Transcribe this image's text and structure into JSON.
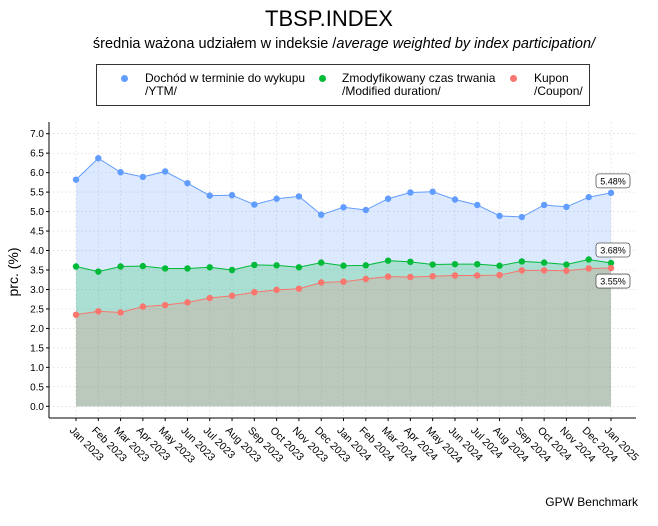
{
  "title": "TBSP.INDEX",
  "subtitle_normal": "średnia ważona udziałem w indeksie /",
  "subtitle_italic": "average weighted by index participation/",
  "source": "GPW Benchmark",
  "legend": [
    {
      "line1": "Dochód w terminie do wykupu",
      "line2": "/YTM/"
    },
    {
      "line1": "Zmodyfikowany czas trwania",
      "line2": "/Modified duration/"
    },
    {
      "line1": "Kupon",
      "line2": "/Coupon/"
    }
  ],
  "colors": {
    "ytm": "#619CFF",
    "duration": "#00BA38",
    "coupon": "#F8766D"
  },
  "chart_data": {
    "type": "area",
    "title": "TBSP.INDEX",
    "ylabel": "prc. (%)",
    "xlabel": "",
    "ylim": [
      -0.3,
      7.3
    ],
    "yticks": [
      "0.0",
      "0.5",
      "1.0",
      "1.5",
      "2.0",
      "2.5",
      "3.0",
      "3.5",
      "4.0",
      "4.5",
      "5.0",
      "5.5",
      "6.0",
      "6.5",
      "7.0"
    ],
    "grid": true,
    "legend_position": "top",
    "categories": [
      "Jan 2023",
      "Feb 2023",
      "Mar 2023",
      "Apr 2023",
      "May 2023",
      "Jun 2023",
      "Jul 2023",
      "Aug 2023",
      "Sep 2023",
      "Oct 2023",
      "Nov 2023",
      "Dec 2023",
      "Jan 2024",
      "Feb 2024",
      "Mar 2024",
      "Apr 2024",
      "May 2024",
      "Jun 2024",
      "Jul 2024",
      "Aug 2024",
      "Sep 2024",
      "Oct 2024",
      "Nov 2024",
      "Dec 2024",
      "Jan 2025"
    ],
    "series": [
      {
        "name": "Dochód w terminie do wykupu /YTM/",
        "key": "ytm",
        "end_label": "5.48%",
        "values": [
          5.82,
          6.37,
          6.01,
          5.89,
          6.03,
          5.73,
          5.41,
          5.42,
          5.18,
          5.33,
          5.39,
          4.92,
          5.11,
          5.04,
          5.33,
          5.49,
          5.51,
          5.31,
          5.17,
          4.89,
          4.86,
          5.17,
          5.12,
          5.37,
          5.48
        ]
      },
      {
        "name": "Zmodyfikowany czas trwania /Modified duration/",
        "key": "duration",
        "end_label": "3.68%",
        "values": [
          3.59,
          3.46,
          3.59,
          3.6,
          3.54,
          3.54,
          3.57,
          3.5,
          3.63,
          3.62,
          3.57,
          3.69,
          3.61,
          3.62,
          3.74,
          3.71,
          3.64,
          3.65,
          3.65,
          3.61,
          3.72,
          3.69,
          3.64,
          3.77,
          3.68
        ]
      },
      {
        "name": "Kupon /Coupon/",
        "key": "coupon",
        "end_label": "3.55%",
        "values": [
          2.35,
          2.44,
          2.41,
          2.56,
          2.6,
          2.67,
          2.78,
          2.84,
          2.93,
          2.99,
          3.02,
          3.18,
          3.2,
          3.27,
          3.33,
          3.32,
          3.34,
          3.36,
          3.36,
          3.37,
          3.49,
          3.49,
          3.48,
          3.54,
          3.55
        ]
      }
    ]
  }
}
